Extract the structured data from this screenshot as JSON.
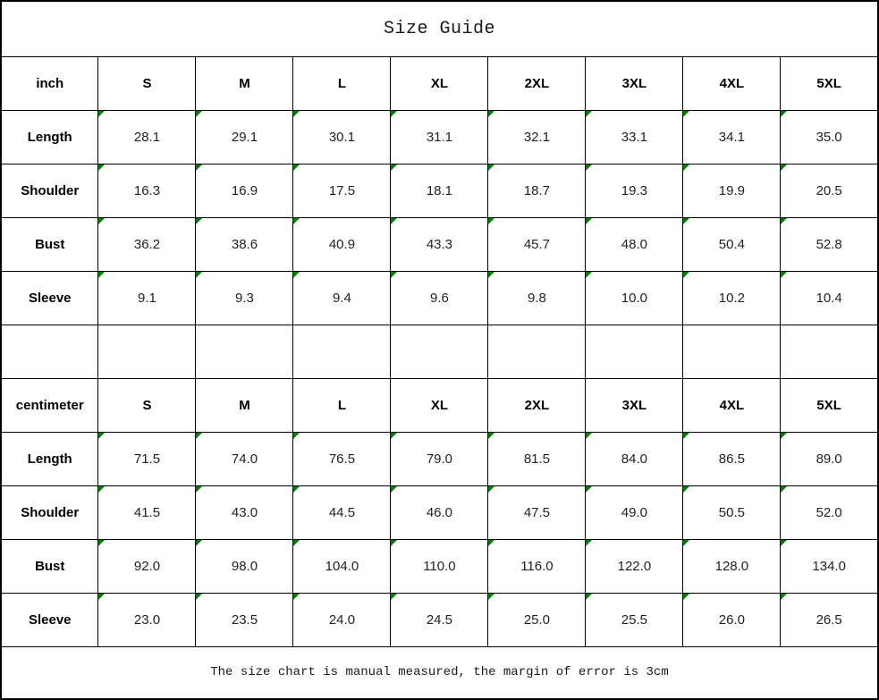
{
  "title": "Size Guide",
  "note": "The size chart is manual measured, the margin of error is 3cm",
  "colors": {
    "border": "#000000",
    "corner_marker_green": "#008000",
    "text": "#000000",
    "background": "#ffffff"
  },
  "chart_data": {
    "type": "table",
    "title": "Size Guide",
    "note": "The size chart is manual measured, the margin of error is 3cm",
    "columns_per_section": [
      "S",
      "M",
      "L",
      "XL",
      "2XL",
      "3XL",
      "4XL",
      "5XL"
    ],
    "sections": [
      {
        "unit_label": "inch",
        "size_headers": [
          "S",
          "M",
          "L",
          "XL",
          "2XL",
          "3XL",
          "4XL",
          "5XL"
        ],
        "rows": [
          {
            "label": "Length",
            "values": [
              "28.1",
              "29.1",
              "30.1",
              "31.1",
              "32.1",
              "33.1",
              "34.1",
              "35.0"
            ]
          },
          {
            "label": "Shoulder",
            "values": [
              "16.3",
              "16.9",
              "17.5",
              "18.1",
              "18.7",
              "19.3",
              "19.9",
              "20.5"
            ]
          },
          {
            "label": "Bust",
            "values": [
              "36.2",
              "38.6",
              "40.9",
              "43.3",
              "45.7",
              "48.0",
              "50.4",
              "52.8"
            ]
          },
          {
            "label": "Sleeve",
            "values": [
              "9.1",
              "9.3",
              "9.4",
              "9.6",
              "9.8",
              "10.0",
              "10.2",
              "10.4"
            ]
          }
        ]
      },
      {
        "unit_label": "centimeter",
        "size_headers": [
          "S",
          "M",
          "L",
          "XL",
          "2XL",
          "3XL",
          "4XL",
          "5XL"
        ],
        "rows": [
          {
            "label": "Length",
            "values": [
              "71.5",
              "74.0",
              "76.5",
              "79.0",
              "81.5",
              "84.0",
              "86.5",
              "89.0"
            ]
          },
          {
            "label": "Shoulder",
            "values": [
              "41.5",
              "43.0",
              "44.5",
              "46.0",
              "47.5",
              "49.0",
              "50.5",
              "52.0"
            ]
          },
          {
            "label": "Bust",
            "values": [
              "92.0",
              "98.0",
              "104.0",
              "110.0",
              "116.0",
              "122.0",
              "128.0",
              "134.0"
            ]
          },
          {
            "label": "Sleeve",
            "values": [
              "23.0",
              "23.5",
              "24.0",
              "24.5",
              "25.0",
              "25.5",
              "26.0",
              "26.5"
            ]
          }
        ]
      }
    ]
  }
}
